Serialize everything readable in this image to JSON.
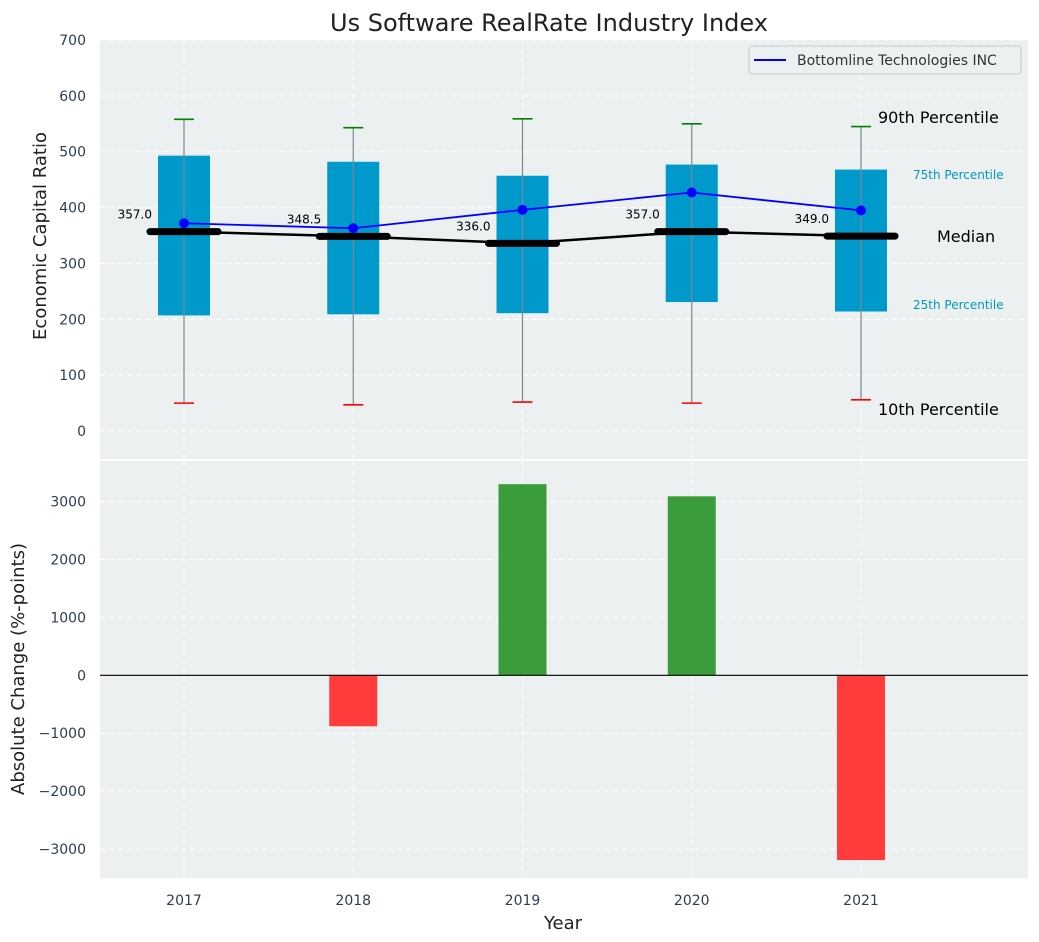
{
  "title": "Us Software RealRate Industry Index",
  "legend": {
    "label": "Bottomline Technologies INC",
    "position": "top-right",
    "color": "#0000ff"
  },
  "annotations": {
    "p90": "90th Percentile",
    "p75": "75th Percentile",
    "median": "Median",
    "p25": "25th Percentile",
    "p10": "10th Percentile"
  },
  "colors": {
    "box": "#0099cc",
    "median": "#000000",
    "whisker_top": "#008000",
    "whisker_bottom": "#ff0000",
    "bar_positive": "#3a9c3a",
    "bar_negative": "#ff3b3b",
    "background": "#ecf0f0",
    "tick_text": "#2e3d55",
    "p75_text": "#0099bb"
  },
  "chart_data": [
    {
      "type": "box",
      "ylabel": "Economic Capital Ratio",
      "ylim": [
        -50,
        700
      ],
      "yticks": [
        0,
        100,
        200,
        300,
        400,
        500,
        600,
        700
      ],
      "categories": [
        "2017",
        "2018",
        "2019",
        "2020",
        "2021"
      ],
      "p10": [
        50,
        47,
        52,
        50,
        56
      ],
      "p25": [
        207,
        209,
        211,
        231,
        214
      ],
      "median": [
        357.0,
        348.5,
        336.0,
        357.0,
        349.0
      ],
      "p75": [
        493,
        482,
        457,
        477,
        468
      ],
      "p90": [
        558,
        543,
        559,
        550,
        545
      ],
      "median_labels": [
        "357.0",
        "348.5",
        "336.0",
        "357.0",
        "349.0"
      ],
      "series": [
        {
          "name": "Bottomline Technologies INC",
          "values": [
            372,
            363,
            396,
            427,
            395
          ]
        }
      ],
      "grid": true
    },
    {
      "type": "bar",
      "xlabel": "Year",
      "ylabel": "Absolute Change (%-points)",
      "ylim": [
        -3500,
        3700
      ],
      "yticks": [
        -3000,
        -2000,
        -1000,
        0,
        1000,
        2000,
        3000
      ],
      "ytick_labels": [
        "−3000",
        "−2000",
        "−1000",
        "0",
        "1000",
        "2000",
        "3000"
      ],
      "categories": [
        "2017",
        "2018",
        "2019",
        "2020",
        "2021"
      ],
      "values": [
        0,
        -880,
        3300,
        3090,
        -3190
      ],
      "grid": true
    }
  ]
}
